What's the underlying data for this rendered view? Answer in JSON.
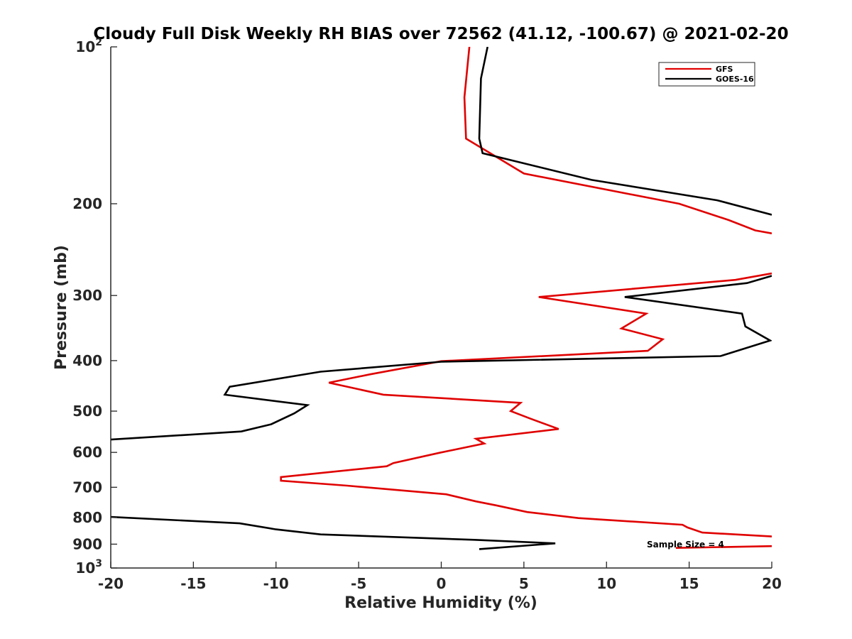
{
  "chart_data": {
    "type": "line",
    "title": "Cloudy Full Disk Weekly RH BIAS over 72562 (41.12, -100.67) @ 2021-02-20",
    "xlabel": "Relative Humidity (%)",
    "ylabel": "Pressure (mb)",
    "xlim": [
      -20,
      20
    ],
    "ylim": [
      100,
      1000
    ],
    "y_scale": "log",
    "y_reversed": true,
    "grid": false,
    "legend_position": "top-right",
    "x_ticks": [
      -20,
      -15,
      -10,
      -5,
      0,
      5,
      10,
      15,
      20
    ],
    "x_tick_labels": [
      "-20",
      "-15",
      "-10",
      "-5",
      "0",
      "5",
      "10",
      "15",
      "20"
    ],
    "y_ticks": [
      100,
      200,
      300,
      400,
      500,
      600,
      700,
      800,
      900,
      1000
    ],
    "y_tick_labels": [
      {
        "base": "10",
        "sup": "2"
      },
      {
        "base": "200",
        "sup": ""
      },
      {
        "base": "300",
        "sup": ""
      },
      {
        "base": "400",
        "sup": ""
      },
      {
        "base": "500",
        "sup": ""
      },
      {
        "base": "600",
        "sup": ""
      },
      {
        "base": "700",
        "sup": ""
      },
      {
        "base": "800",
        "sup": ""
      },
      {
        "base": "900",
        "sup": ""
      },
      {
        "base": "10",
        "sup": "3"
      }
    ],
    "annotation": "Sample Size = 4",
    "series": [
      {
        "name": "GFS",
        "color": "#e00000",
        "points": [
          [
            1.7,
            100
          ],
          [
            1.4,
            125
          ],
          [
            1.5,
            150
          ],
          [
            5.0,
            175
          ],
          [
            14.4,
            200
          ],
          [
            17.4,
            215
          ],
          [
            19.0,
            225
          ],
          [
            20.0,
            228
          ],
          [
            null,
            null
          ],
          [
            20.0,
            272
          ],
          [
            17.8,
            280
          ],
          [
            5.9,
            302
          ],
          [
            12.4,
            325
          ],
          [
            10.9,
            347
          ],
          [
            13.4,
            364
          ],
          [
            12.5,
            383
          ],
          [
            0.0,
            401
          ],
          [
            -4.3,
            425
          ],
          [
            -6.8,
            441
          ],
          [
            -3.5,
            465
          ],
          [
            4.8,
            482
          ],
          [
            4.2,
            500
          ],
          [
            5.4,
            517
          ],
          [
            7.1,
            541
          ],
          [
            2.1,
            565
          ],
          [
            2.6,
            577
          ],
          [
            -0.1,
            601
          ],
          [
            -2.9,
            629
          ],
          [
            -3.3,
            638
          ],
          [
            -9.7,
            669
          ],
          [
            -9.7,
            680
          ],
          [
            -5.7,
            695
          ],
          [
            0.3,
            722
          ],
          [
            2.1,
            745
          ],
          [
            3.3,
            758
          ],
          [
            5.2,
            781
          ],
          [
            8.3,
            802
          ],
          [
            14.6,
            826
          ],
          [
            14.9,
            836
          ],
          [
            15.8,
            855
          ],
          [
            20.0,
            870
          ],
          [
            null,
            null
          ],
          [
            20.0,
            908
          ],
          [
            14.2,
            915
          ]
        ]
      },
      {
        "name": "GOES-16",
        "color": "#000000",
        "points": [
          [
            2.8,
            100
          ],
          [
            2.4,
            115
          ],
          [
            2.3,
            150
          ],
          [
            2.5,
            160
          ],
          [
            9.1,
            180
          ],
          [
            16.7,
            197
          ],
          [
            20.0,
            210
          ],
          [
            null,
            null
          ],
          [
            20.0,
            275
          ],
          [
            18.5,
            284
          ],
          [
            11.1,
            302
          ],
          [
            18.2,
            325
          ],
          [
            18.4,
            344
          ],
          [
            19.9,
            366
          ],
          [
            16.9,
            392
          ],
          [
            0.0,
            402
          ],
          [
            -7.3,
            420
          ],
          [
            -12.8,
            449
          ],
          [
            -13.1,
            465
          ],
          [
            -8.1,
            487
          ],
          [
            -8.9,
            505
          ],
          [
            -10.3,
            530
          ],
          [
            -12.1,
            547
          ],
          [
            -20.0,
            567
          ],
          [
            null,
            null
          ],
          [
            -20.0,
            798
          ],
          [
            -12.2,
            821
          ],
          [
            -10.0,
            843
          ],
          [
            -7.3,
            862
          ],
          [
            2.0,
            883
          ],
          [
            6.9,
            897
          ],
          [
            2.3,
            920
          ]
        ]
      }
    ]
  }
}
